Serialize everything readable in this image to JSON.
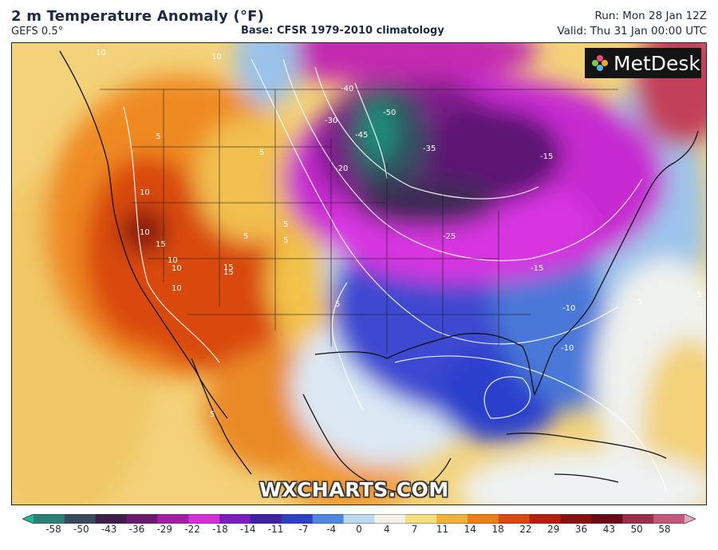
{
  "header": {
    "title": "2 m Temperature Anomaly (°F)",
    "model": "GEFS 0.5°",
    "base": "Base: CFSR 1979-2010 climatology",
    "run": "Run: Mon 28 Jan 12Z",
    "valid": "Valid: Thu 31 Jan 00:00 UTC"
  },
  "brand": {
    "logo": "MetDesk",
    "watermark": "WXCHARTS.COM"
  },
  "map_labels": [
    "10",
    "10",
    "5",
    "5",
    "10",
    "10",
    "15",
    "10",
    "10",
    "15",
    "15",
    "10",
    "5",
    "5",
    "5",
    "5",
    "-40",
    "-50",
    "-30",
    "-45",
    "-35",
    "-20",
    "-15",
    "-25",
    "-15",
    "-10",
    "-5",
    "-10",
    "5",
    "5"
  ],
  "colorbar": {
    "ticks": [
      "-58",
      "-50",
      "-43",
      "-36",
      "-29",
      "-22",
      "-18",
      "-14",
      "-11",
      "-7",
      "-4",
      "0",
      "4",
      "7",
      "11",
      "14",
      "18",
      "22",
      "29",
      "36",
      "43",
      "50",
      "58"
    ],
    "colors": [
      "#1fb89a",
      "#2b7f75",
      "#3a4a5c",
      "#3f1f4a",
      "#6a1a72",
      "#a41ea5",
      "#d42fd8",
      "#7a1cc2",
      "#3f20a8",
      "#2e3fc8",
      "#4f86e0",
      "#bcd9f0",
      "#f2f2e6",
      "#f5dd80",
      "#f3b23a",
      "#ee7d1a",
      "#e04612",
      "#b81d0e",
      "#8a0f12",
      "#6a0a18",
      "#9e2c4a",
      "#c05a78",
      "#e8a6c2"
    ]
  },
  "colors": {
    "warm": "#d9540f",
    "cold": "#2e3fc8",
    "purple": "#8b1c9e"
  }
}
